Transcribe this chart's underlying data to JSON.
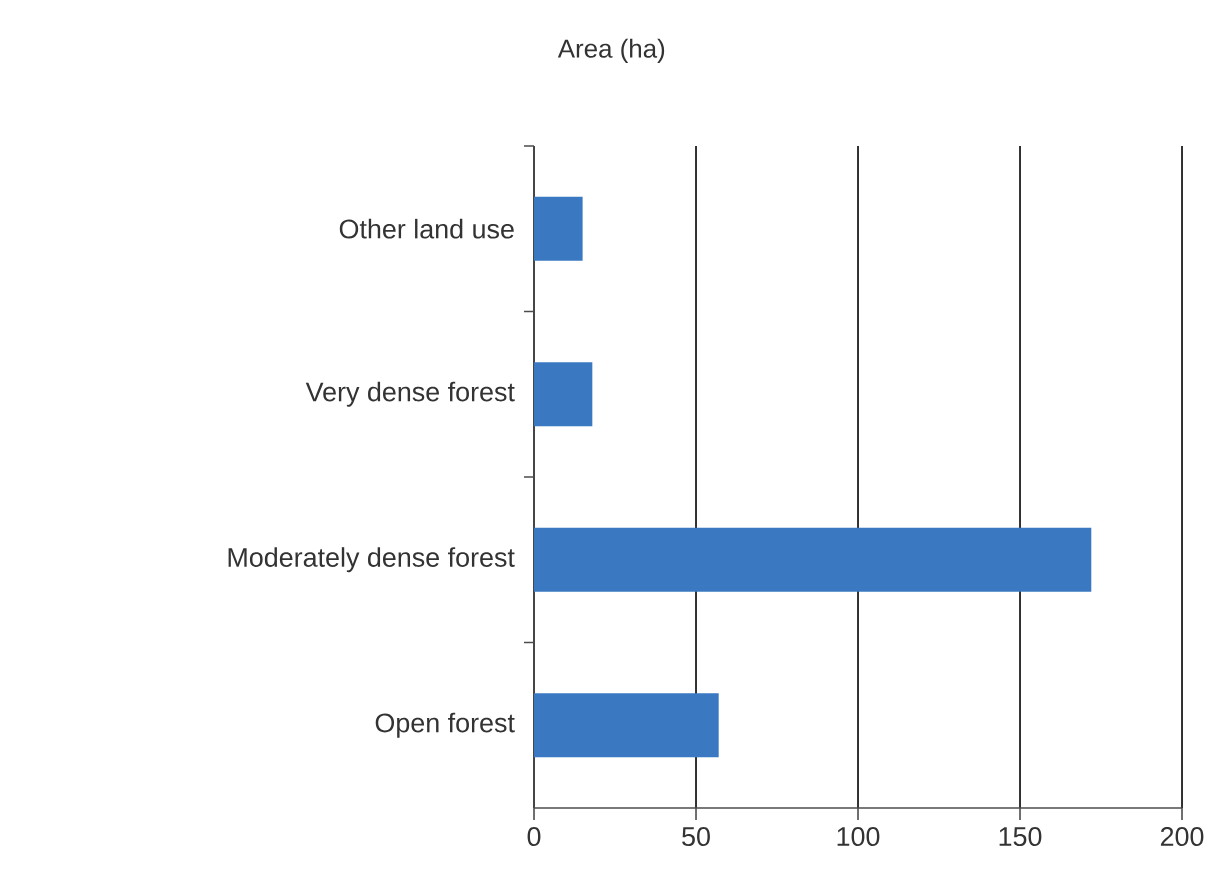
{
  "chart_data": {
    "type": "bar",
    "orientation": "horizontal",
    "xlabel": "Area (ha)",
    "categories": [
      "Other land use",
      "Very dense forest",
      "Moderately dense forest",
      "Open forest"
    ],
    "values": [
      15,
      18,
      172,
      57
    ],
    "color": "#3a78c2",
    "xlim": [
      0,
      200
    ],
    "xticks": [
      0,
      50,
      100,
      150,
      200
    ],
    "grid": "x"
  }
}
